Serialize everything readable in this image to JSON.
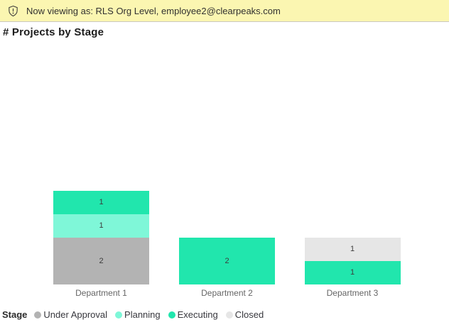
{
  "banner": {
    "icon": "shield-exclamation-icon",
    "text": "Now viewing as: RLS Org Level, employee2@clearpeaks.com",
    "background": "#FBF6B1"
  },
  "chart_data": {
    "type": "bar",
    "stacked": true,
    "title": "# Projects by Stage",
    "categories": [
      "Department 1",
      "Department 2",
      "Department 3"
    ],
    "series": [
      {
        "name": "Under Approval",
        "color": "#B3B3B3",
        "values": [
          2,
          0,
          0
        ]
      },
      {
        "name": "Planning",
        "color": "#7FF7D8",
        "values": [
          1,
          0,
          0
        ]
      },
      {
        "name": "Executing",
        "color": "#21E6AD",
        "values": [
          1,
          2,
          1
        ]
      },
      {
        "name": "Closed",
        "color": "#E6E6E6",
        "values": [
          0,
          0,
          1
        ]
      }
    ],
    "totals": [
      4,
      2,
      2
    ],
    "legend_title": "Stage",
    "legend_position": "bottom",
    "ylim": [
      0,
      4
    ],
    "grid": false,
    "data_labels": true
  }
}
